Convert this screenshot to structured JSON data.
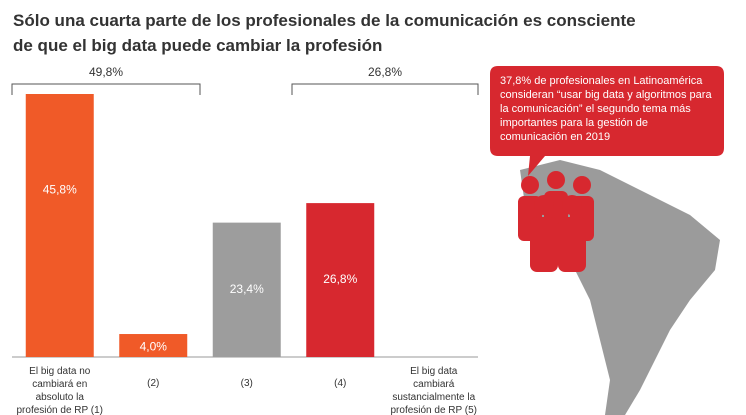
{
  "chart_data": {
    "type": "bar",
    "title": "Sólo una cuarta parte de los profesionales de la comunicación es consciente de que el big data puede cambiar la profesión",
    "categories": [
      "El big data no cambiará en absoluto la profesión de RP (1)",
      "(2)",
      "(3)",
      "(4)",
      "El big data cambiará sustancialmente la profesión de RP (5)"
    ],
    "values": [
      45.8,
      4.0,
      23.4,
      26.8,
      null
    ],
    "value_labels": [
      "45,8%",
      "4,0%",
      "23,4%",
      "26,8%",
      null
    ],
    "colors": [
      "#f05a28",
      "#f05a28",
      "#9d9d9d",
      "#d7282f",
      "#d7282f"
    ],
    "brackets": [
      "49,8%",
      "26,8%"
    ],
    "annotation": "37,8% de profesionales en Latinoamérica consideran “usar big data y algoritmos para la comunicación” el segundo tema más importantes para la gestión de comunicación en 2019"
  }
}
